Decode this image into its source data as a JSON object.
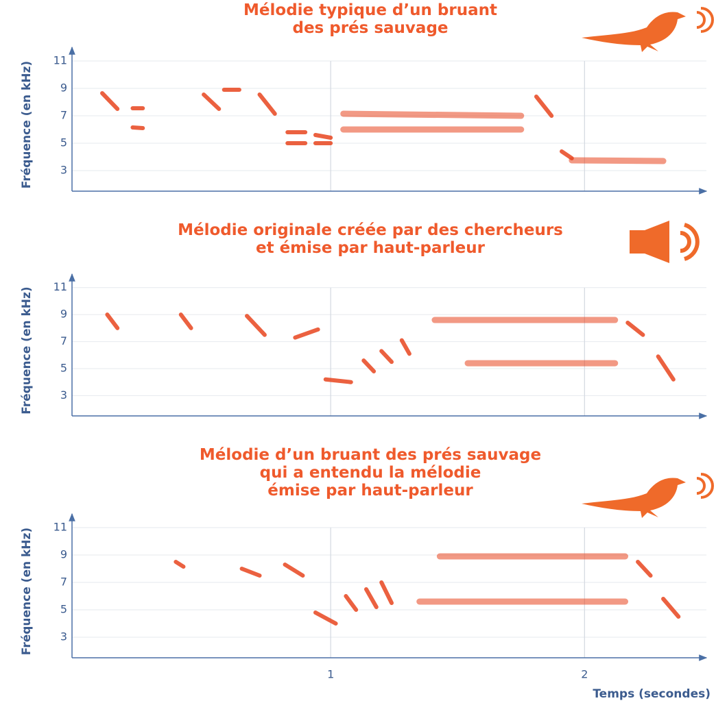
{
  "chart_data": [
    {
      "type": "spectrogram",
      "title": [
        "Mélodie typique d’un bruant",
        "des prés sauvage"
      ],
      "ylabel": "Fréquence (en kHz)",
      "color": "#e8451f",
      "xlim": [
        0,
        2.48
      ],
      "xticks": [
        1,
        2
      ],
      "ylim": [
        1.5,
        12
      ],
      "yticks": [
        3,
        5,
        7,
        9,
        11
      ],
      "grid": true,
      "notes": [
        [
          0.1,
          0.16,
          8.65,
          7.5
        ],
        [
          0.22,
          0.26,
          7.55,
          7.55
        ],
        [
          0.22,
          0.26,
          6.15,
          6.1
        ],
        [
          0.5,
          0.56,
          8.55,
          7.5
        ],
        [
          0.58,
          0.64,
          8.9,
          8.9
        ],
        [
          0.72,
          0.78,
          8.55,
          7.15
        ],
        [
          0.83,
          0.9,
          5.8,
          5.8
        ],
        [
          0.83,
          0.9,
          5.0,
          5.0
        ],
        [
          0.94,
          1.0,
          5.6,
          5.4
        ],
        [
          0.94,
          1.0,
          5.0,
          5.0
        ],
        [
          1.05,
          1.75,
          7.15,
          7.0
        ],
        [
          1.05,
          1.75,
          6.0,
          6.0
        ],
        [
          1.81,
          1.87,
          8.4,
          7.0
        ],
        [
          1.91,
          1.95,
          4.4,
          3.9
        ],
        [
          1.95,
          2.31,
          3.75,
          3.7
        ]
      ]
    },
    {
      "type": "spectrogram",
      "title": [
        "Mélodie originale créée par des chercheurs",
        "et émise par haut-parleur"
      ],
      "ylabel": "Fréquence (en kHz)",
      "color": "#e8451f",
      "xlim": [
        0,
        2.48
      ],
      "xticks": [
        1,
        2
      ],
      "ylim": [
        1.5,
        12
      ],
      "yticks": [
        3,
        5,
        7,
        9,
        11
      ],
      "grid": true,
      "notes": [
        [
          0.12,
          0.16,
          9.0,
          8.0
        ],
        [
          0.41,
          0.45,
          9.0,
          8.0
        ],
        [
          0.67,
          0.74,
          8.9,
          7.5
        ],
        [
          0.86,
          0.95,
          7.3,
          7.9
        ],
        [
          0.98,
          1.08,
          4.2,
          4.0
        ],
        [
          1.13,
          1.17,
          5.6,
          4.8
        ],
        [
          1.2,
          1.24,
          6.3,
          5.5
        ],
        [
          1.28,
          1.31,
          7.1,
          6.1
        ],
        [
          1.41,
          2.12,
          8.6,
          8.6
        ],
        [
          1.54,
          2.12,
          5.4,
          5.4
        ],
        [
          2.17,
          2.23,
          8.4,
          7.5
        ],
        [
          2.29,
          2.35,
          5.9,
          4.2
        ]
      ]
    },
    {
      "type": "spectrogram",
      "title": [
        "Mélodie d’un bruant des prés sauvage",
        "qui a entendu la mélodie",
        "émise par haut-parleur"
      ],
      "ylabel": "Fréquence (en kHz)",
      "xlabel": "Temps (secondes)",
      "color": "#e8451f",
      "xlim": [
        0,
        2.48
      ],
      "xticks": [
        1,
        2
      ],
      "ylim": [
        1.5,
        12
      ],
      "yticks": [
        3,
        5,
        7,
        9,
        11
      ],
      "grid": true,
      "notes": [
        [
          0.39,
          0.42,
          8.5,
          8.15
        ],
        [
          0.65,
          0.72,
          8.0,
          7.5
        ],
        [
          0.82,
          0.89,
          8.3,
          7.5
        ],
        [
          0.94,
          1.02,
          4.8,
          4.0
        ],
        [
          1.06,
          1.1,
          6.0,
          5.0
        ],
        [
          1.14,
          1.18,
          6.5,
          5.2
        ],
        [
          1.2,
          1.24,
          7.0,
          5.5
        ],
        [
          1.43,
          2.16,
          8.9,
          8.9
        ],
        [
          1.35,
          2.16,
          5.6,
          5.6
        ],
        [
          2.21,
          2.26,
          8.5,
          7.5
        ],
        [
          2.31,
          2.37,
          5.8,
          4.5
        ]
      ]
    }
  ]
}
